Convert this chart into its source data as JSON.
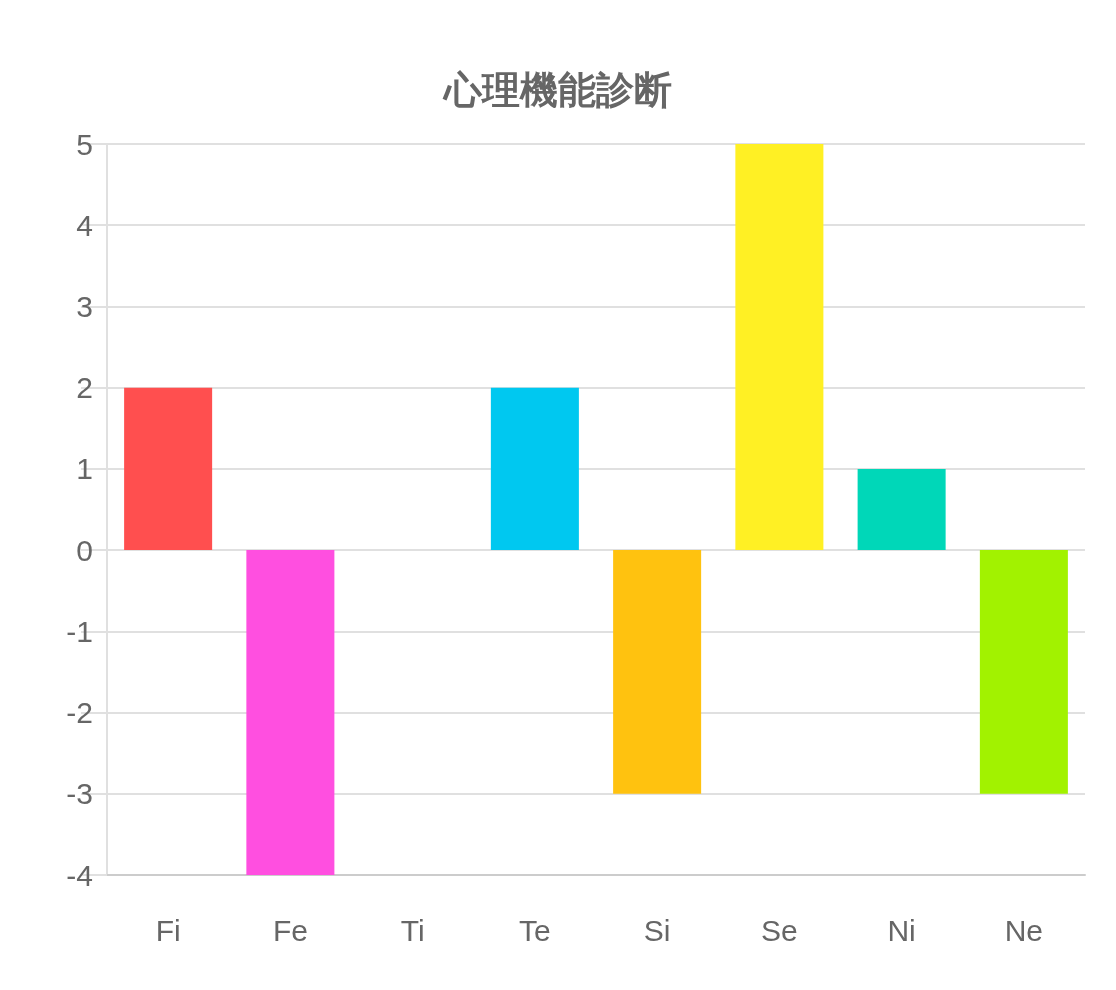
{
  "chart_data": {
    "type": "bar",
    "title": "心理機能診断",
    "categories": [
      "Fi",
      "Fe",
      "Ti",
      "Te",
      "Si",
      "Se",
      "Ni",
      "Ne"
    ],
    "values": [
      2,
      -4,
      0,
      2,
      -3,
      5,
      1,
      -3
    ],
    "colors": [
      "#ff4f4f",
      "#ff4fe0",
      "#9966ff",
      "#00c8f0",
      "#ffc20f",
      "#fff024",
      "#00d7b8",
      "#a2f200"
    ],
    "ylim": [
      -4,
      5
    ],
    "yticks": [
      -4,
      -3,
      -2,
      -1,
      0,
      1,
      2,
      3,
      4,
      5
    ],
    "grid": "y"
  }
}
